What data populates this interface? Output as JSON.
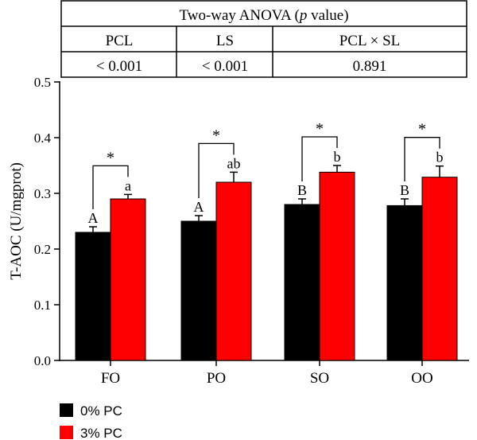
{
  "anova_table": {
    "title": "Two-way ANOVA (",
    "title_italic": "p",
    "title_end": " value)",
    "headers": [
      "PCL",
      "LS",
      "PCL × SL"
    ],
    "values": [
      "< 0.001",
      "< 0.001",
      "0.891"
    ]
  },
  "chart_data": {
    "type": "bar",
    "ylabel": "T-AOC (U/mgprot)",
    "xlabel": "",
    "ylim": [
      0,
      0.5
    ],
    "yticks": [
      "0.0",
      "0.1",
      "0.2",
      "0.3",
      "0.4",
      "0.5"
    ],
    "categories": [
      "FO",
      "PO",
      "SO",
      "OO"
    ],
    "series": [
      {
        "name": "0% PC",
        "color": "#000000",
        "values": [
          0.23,
          0.25,
          0.28,
          0.278
        ],
        "errors": [
          0.01,
          0.01,
          0.01,
          0.012
        ],
        "letters": [
          "A",
          "A",
          "B",
          "B"
        ]
      },
      {
        "name": "3% PC",
        "color": "#ff0000",
        "values": [
          0.29,
          0.32,
          0.338,
          0.329
        ],
        "errors": [
          0.008,
          0.018,
          0.012,
          0.02
        ],
        "letters": [
          "a",
          "ab",
          "b",
          "b"
        ]
      }
    ],
    "significance": [
      "*",
      "*",
      "*",
      "*"
    ],
    "legend_position": "bottom-left"
  }
}
